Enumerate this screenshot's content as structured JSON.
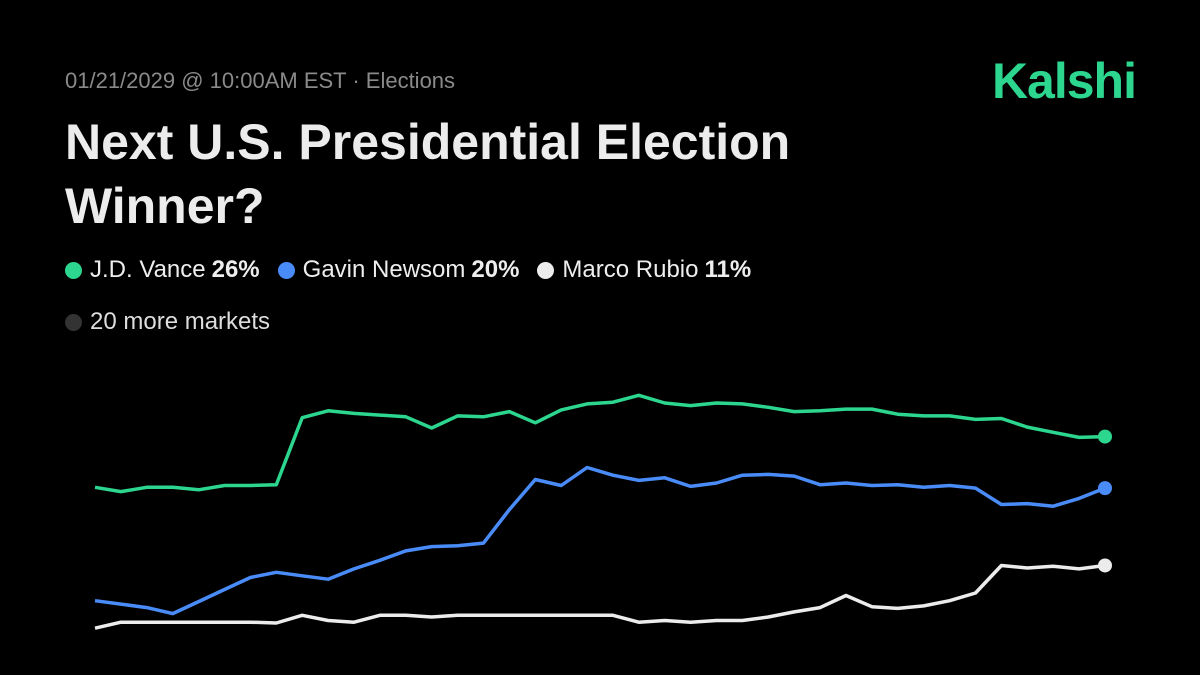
{
  "meta": {
    "date_line": "01/21/2029 @ 10:00AM EST · Elections",
    "brand": "Kalshi",
    "more_markets": "20 more markets"
  },
  "chart_data": {
    "type": "line",
    "title": "Next U.S. Presidential Election Winner?",
    "ylim": [
      0,
      32
    ],
    "series": [
      {
        "name": "J.D. Vance",
        "color": "#2dd68f",
        "values": [
          20.1,
          19.6,
          20.1,
          20.1,
          19.8,
          20.3,
          20.3,
          20.4,
          28.2,
          29.0,
          28.7,
          28.5,
          28.3,
          27.0,
          28.4,
          28.3,
          28.9,
          27.6,
          29.1,
          29.8,
          30.0,
          30.8,
          29.9,
          29.6,
          29.9,
          29.8,
          29.4,
          28.9,
          29.0,
          29.2,
          29.2,
          28.6,
          28.4,
          28.4,
          28.0,
          28.1,
          27.1,
          26.5,
          25.9,
          26
        ],
        "value_labels": [
          null,
          null,
          null,
          null,
          null,
          null,
          null,
          null,
          null,
          null,
          null,
          null,
          null,
          null,
          null,
          null,
          null,
          null,
          null,
          null,
          null,
          null,
          null,
          null,
          null,
          null,
          null,
          null,
          null,
          null,
          null,
          null,
          null,
          null,
          null,
          null,
          null,
          null,
          null,
          "26%"
        ]
      },
      {
        "name": "Gavin Newsom",
        "color": "#4a8cf7",
        "values": [
          6.9,
          6.5,
          6.1,
          5.4,
          6.8,
          8.2,
          9.6,
          10.2,
          9.8,
          9.4,
          10.6,
          11.6,
          12.7,
          13.2,
          13.3,
          13.6,
          17.5,
          21.0,
          20.3,
          22.4,
          21.5,
          20.9,
          21.2,
          20.2,
          20.6,
          21.5,
          21.6,
          21.4,
          20.4,
          20.6,
          20.3,
          20.4,
          20.1,
          20.3,
          20.0,
          18.1,
          18.2,
          17.9,
          18.8,
          20
        ],
        "value_labels": [
          null,
          null,
          null,
          null,
          null,
          null,
          null,
          null,
          null,
          null,
          null,
          null,
          null,
          null,
          null,
          null,
          null,
          null,
          null,
          null,
          null,
          null,
          null,
          null,
          null,
          null,
          null,
          null,
          null,
          null,
          null,
          null,
          null,
          null,
          null,
          null,
          null,
          null,
          null,
          "20%"
        ]
      },
      {
        "name": "Marco Rubio",
        "color": "#ececec",
        "values": [
          3.7,
          4.4,
          4.4,
          4.4,
          4.4,
          4.4,
          4.4,
          4.3,
          5.2,
          4.6,
          4.4,
          5.2,
          5.2,
          5.0,
          5.2,
          5.2,
          5.2,
          5.2,
          5.2,
          5.2,
          5.2,
          4.4,
          4.6,
          4.4,
          4.6,
          4.6,
          5.0,
          5.6,
          6.1,
          7.5,
          6.2,
          6.0,
          6.3,
          6.9,
          7.8,
          11.0,
          10.7,
          10.9,
          10.6,
          11
        ],
        "value_labels": [
          null,
          null,
          null,
          null,
          null,
          null,
          null,
          null,
          null,
          null,
          null,
          null,
          null,
          null,
          null,
          null,
          null,
          null,
          null,
          null,
          null,
          null,
          null,
          null,
          null,
          null,
          null,
          null,
          null,
          null,
          null,
          null,
          null,
          null,
          null,
          null,
          null,
          null,
          null,
          "11%"
        ]
      }
    ]
  }
}
